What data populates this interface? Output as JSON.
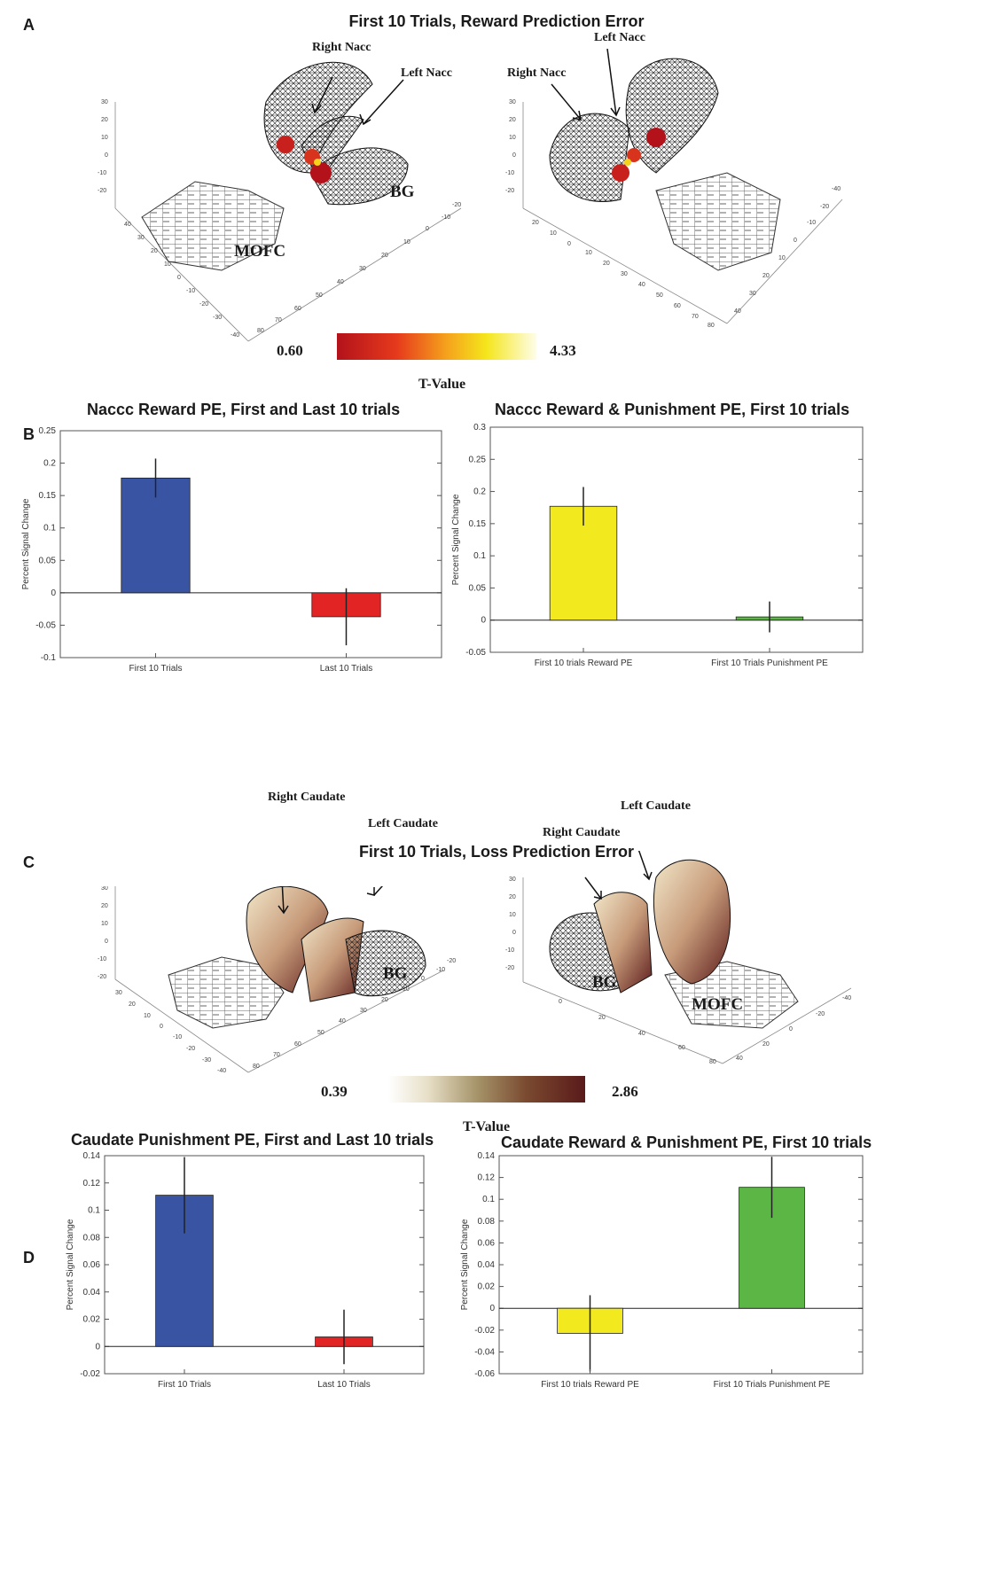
{
  "panels": {
    "a_letter": "A",
    "b_letter": "B",
    "c_letter": "C",
    "d_letter": "D",
    "a_title": "First 10 Trials, Reward Prediction Error",
    "c_title": "First 10 Trials, Loss Prediction Error"
  },
  "brain_a": {
    "left_right_nacc": "Right Nacc",
    "left_left_nacc": "Left Nacc",
    "left_bg": "BG",
    "left_mofc": "MOFC",
    "right_right_nacc": "Right Nacc",
    "right_left_nacc": "Left Nacc",
    "colorbar_min": "0.60",
    "colorbar_max": "4.33",
    "tvalue": "T-Value"
  },
  "brain_c": {
    "left_right_caudate": "Right Caudate",
    "left_left_caudate": "Left Caudate",
    "left_bg": "BG",
    "right_right_caudate": "Right Caudate",
    "right_left_caudate": "Left Caudate",
    "right_bg": "BG",
    "right_mofc": "MOFC",
    "colorbar_min": "0.39",
    "colorbar_max": "2.86",
    "tvalue": "T-Value"
  },
  "colors": {
    "blue": "#3a54a4",
    "red": "#e32424",
    "yellow": "#f2ea1e",
    "green": "#5cb646",
    "hot_dark": "#b3121b",
    "hot_light": "#fefde9",
    "copper_light": "#f8f4e4",
    "copper_dark": "#5a1a1a"
  },
  "chart_data": [
    {
      "type": "bar",
      "title": "Naccc Reward PE, First and Last 10 trials",
      "ylabel": "Percent Signal Change",
      "categories": [
        "First 10 Trials",
        "Last 10 Trials"
      ],
      "values": [
        0.177,
        -0.037
      ],
      "errors": [
        0.03,
        0.044
      ],
      "bar_colors": [
        "#3a54a4",
        "#e32424"
      ],
      "ylim": [
        -0.1,
        0.25
      ],
      "yticks": [
        -0.1,
        -0.05,
        0,
        0.05,
        0.1,
        0.15,
        0.2,
        0.25
      ],
      "ytick_labels": [
        "-0.1",
        "-0.05",
        "0",
        "0.05",
        "0.1",
        "0.15",
        "0.2",
        "0.25"
      ]
    },
    {
      "type": "bar",
      "title": "Naccc Reward & Punishment PE, First 10 trials",
      "ylabel": "Percent Signal Change",
      "categories": [
        "First 10 trials Reward PE",
        "First 10 Trials Punishment PE"
      ],
      "values": [
        0.177,
        0.005
      ],
      "errors": [
        0.03,
        0.024
      ],
      "bar_colors": [
        "#f2ea1e",
        "#5cb646"
      ],
      "ylim": [
        -0.05,
        0.3
      ],
      "yticks": [
        -0.05,
        0,
        0.05,
        0.1,
        0.15,
        0.2,
        0.25,
        0.3
      ],
      "ytick_labels": [
        "-0.05",
        "0",
        "0.05",
        "0.1",
        "0.15",
        "0.2",
        "0.25",
        "0.3"
      ]
    },
    {
      "type": "bar",
      "title": "Caudate Punishment PE, First and Last 10 trials",
      "ylabel": "Percent Signal Change",
      "categories": [
        "First 10 Trials",
        "Last 10 Trials"
      ],
      "values": [
        0.111,
        0.007
      ],
      "errors": [
        0.028,
        0.02
      ],
      "bar_colors": [
        "#3a54a4",
        "#e32424"
      ],
      "ylim": [
        -0.02,
        0.14
      ],
      "yticks": [
        -0.02,
        0,
        0.02,
        0.04,
        0.06,
        0.08,
        0.1,
        0.12,
        0.14
      ],
      "ytick_labels": [
        "-0.02",
        "0",
        "0.02",
        "0.04",
        "0.06",
        "0.08",
        "0.1",
        "0.12",
        "0.14"
      ]
    },
    {
      "type": "bar",
      "title": "Caudate Reward & Punishment PE, First 10 trials",
      "ylabel": "Percent Signal Change",
      "categories": [
        "First 10 trials Reward PE",
        "First 10 Trials Punishment PE"
      ],
      "values": [
        -0.023,
        0.111
      ],
      "errors": [
        0.035,
        0.028
      ],
      "bar_colors": [
        "#f2ea1e",
        "#5cb646"
      ],
      "ylim": [
        -0.06,
        0.14
      ],
      "yticks": [
        -0.06,
        -0.04,
        -0.02,
        0,
        0.02,
        0.04,
        0.06,
        0.08,
        0.1,
        0.12,
        0.14
      ],
      "ytick_labels": [
        "-0.06",
        "-0.04",
        "-0.02",
        "0",
        "0.02",
        "0.04",
        "0.06",
        "0.08",
        "0.1",
        "0.12",
        "0.14"
      ]
    }
  ]
}
